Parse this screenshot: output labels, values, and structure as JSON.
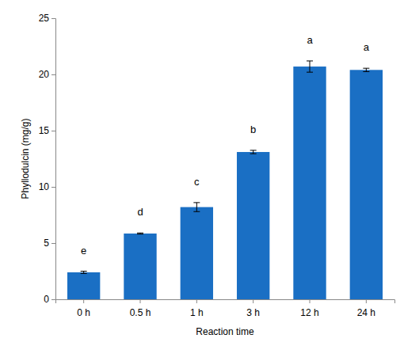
{
  "chart_data": {
    "type": "bar",
    "x_label": "Reaction time",
    "y_label": "Phyllodulcin (mg/g)",
    "categories": [
      "0 h",
      "0.5 h",
      "1 h",
      "3 h",
      "12 h",
      "24 h"
    ],
    "values": [
      2.4,
      5.85,
      8.2,
      13.1,
      20.7,
      20.4
    ],
    "errors": [
      0.1,
      0.05,
      0.4,
      0.15,
      0.5,
      0.15
    ],
    "annotations": [
      "e",
      "d",
      "c",
      "b",
      "a",
      "a"
    ],
    "color": "#1a6fc4",
    "ylim": [
      0,
      25
    ],
    "yticks": [
      0,
      5,
      10,
      15,
      20,
      25
    ],
    "grid": false
  }
}
